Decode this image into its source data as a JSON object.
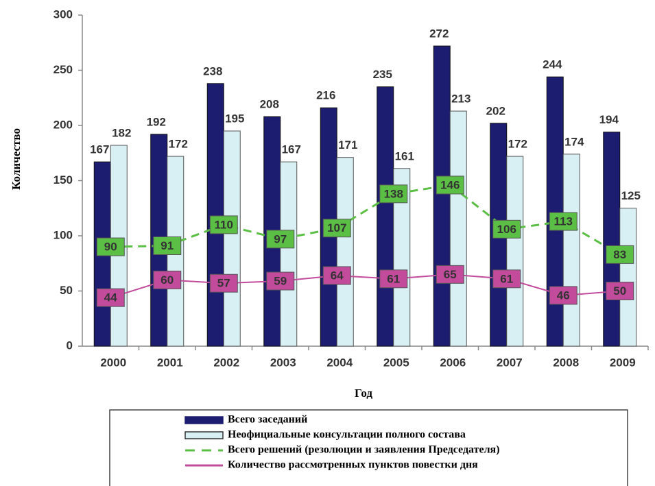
{
  "chart_data": {
    "type": "bar-line",
    "xlabel": "Год",
    "ylabel": "Количество",
    "categories": [
      "2000",
      "2001",
      "2002",
      "2003",
      "2004",
      "2005",
      "2006",
      "2007",
      "2008",
      "2009"
    ],
    "series": [
      {
        "name": "Всего заседаний",
        "type": "bar",
        "color": "#1c1c70",
        "values": [
          167,
          192,
          238,
          208,
          216,
          235,
          272,
          202,
          244,
          194
        ]
      },
      {
        "name": "Неофициальные консультации полного состава",
        "type": "bar",
        "color": "#d8eff4",
        "values": [
          182,
          172,
          195,
          167,
          171,
          161,
          213,
          172,
          174,
          125
        ]
      },
      {
        "name": "Всего решений (резолюции и заявления Председателя)",
        "type": "line",
        "dashed": true,
        "color": "#5cbf45",
        "values": [
          90,
          91,
          110,
          97,
          107,
          138,
          146,
          106,
          113,
          83
        ]
      },
      {
        "name": "Количество рассмотренных пунктов повестки дня",
        "type": "line",
        "dashed": false,
        "color": "#c24b9c",
        "values": [
          44,
          60,
          57,
          59,
          64,
          61,
          65,
          61,
          46,
          50
        ]
      }
    ],
    "ylim": [
      0,
      300
    ],
    "yticks": [
      0,
      50,
      100,
      150,
      200,
      250,
      300
    ]
  }
}
